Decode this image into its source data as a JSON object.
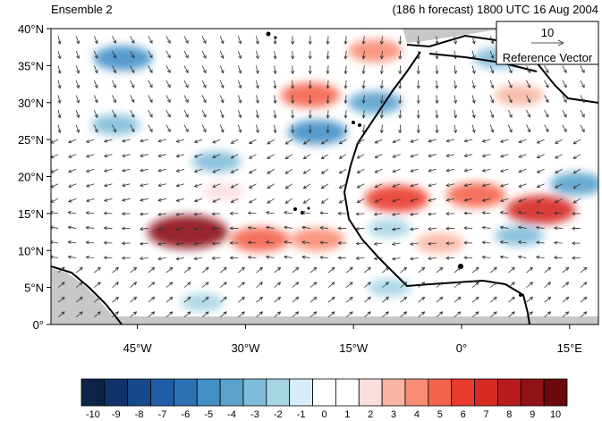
{
  "header": {
    "left_title": "Ensemble 2",
    "right_title": "(186 h forecast) 1800 UTC 16 Aug 2004"
  },
  "map": {
    "lon_range": [
      -57,
      19
    ],
    "lat_range": [
      0,
      40
    ],
    "lat_ticks": [
      {
        "value": 0,
        "label": "0°"
      },
      {
        "value": 5,
        "label": "5°N"
      },
      {
        "value": 10,
        "label": "10°N"
      },
      {
        "value": 15,
        "label": "15°N"
      },
      {
        "value": 20,
        "label": "20°N"
      },
      {
        "value": 25,
        "label": "25°N"
      },
      {
        "value": 30,
        "label": "30°N"
      },
      {
        "value": 35,
        "label": "35°N"
      },
      {
        "value": 40,
        "label": "40°N"
      }
    ],
    "lon_ticks": [
      {
        "value": -45,
        "label": "45°W"
      },
      {
        "value": -30,
        "label": "30°W"
      },
      {
        "value": -15,
        "label": "15°W"
      },
      {
        "value": 0,
        "label": "0°"
      },
      {
        "value": 15,
        "label": "15°E"
      }
    ],
    "reference_vector": {
      "magnitude_label": "10",
      "caption": "Reference Vector"
    },
    "colors": {
      "land_mask": "#c8c8c8",
      "coast": "#000000",
      "arrow": "#333333"
    },
    "anomaly_features": [
      {
        "lon": -21,
        "lat": 31,
        "value": 5
      },
      {
        "lon": -12,
        "lat": 37,
        "value": 4
      },
      {
        "lon": -38,
        "lat": 12.5,
        "value": 9
      },
      {
        "lon": -28,
        "lat": 11.5,
        "value": 5
      },
      {
        "lon": -20,
        "lat": 11.5,
        "value": 4
      },
      {
        "lon": -9,
        "lat": 17,
        "value": 6
      },
      {
        "lon": 2,
        "lat": 17.5,
        "value": 5
      },
      {
        "lon": 11,
        "lat": 15.5,
        "value": 7
      },
      {
        "lon": -3,
        "lat": 11,
        "value": 3
      },
      {
        "lon": 8,
        "lat": 31,
        "value": 3
      },
      {
        "lon": -33,
        "lat": 18,
        "value": 2
      },
      {
        "lon": -47,
        "lat": 36,
        "value": -5
      },
      {
        "lon": -20,
        "lat": 26,
        "value": -5
      },
      {
        "lon": -12,
        "lat": 30,
        "value": -4
      },
      {
        "lon": -34,
        "lat": 22,
        "value": -3
      },
      {
        "lon": -48,
        "lat": 27,
        "value": -3
      },
      {
        "lon": -10,
        "lat": 13,
        "value": -2
      },
      {
        "lon": 8,
        "lat": 12,
        "value": -3
      },
      {
        "lon": -36,
        "lat": 3,
        "value": -2
      },
      {
        "lon": -10,
        "lat": 5,
        "value": -2
      },
      {
        "lon": 5,
        "lat": 36,
        "value": -3
      },
      {
        "lon": 16,
        "lat": 19,
        "value": -4
      }
    ]
  },
  "colorbar": {
    "labels": [
      "-10",
      "-9",
      "-8",
      "-7",
      "-6",
      "-5",
      "-4",
      "-3",
      "-2",
      "-1",
      "0",
      "1",
      "2",
      "3",
      "4",
      "5",
      "6",
      "7",
      "8",
      "9",
      "10"
    ],
    "colors": [
      "#0b2448",
      "#0f3268",
      "#164a8c",
      "#1f5ea6",
      "#2c70b4",
      "#4390c6",
      "#5aa2cc",
      "#7fbcda",
      "#a6d5e4",
      "#d7eefa",
      "#ffffff",
      "#ffffff",
      "#fcdede",
      "#fab6a2",
      "#f88d74",
      "#f4644c",
      "#ea3c2e",
      "#d62a22",
      "#b81c1e",
      "#8e1216",
      "#6a0a0c"
    ]
  }
}
